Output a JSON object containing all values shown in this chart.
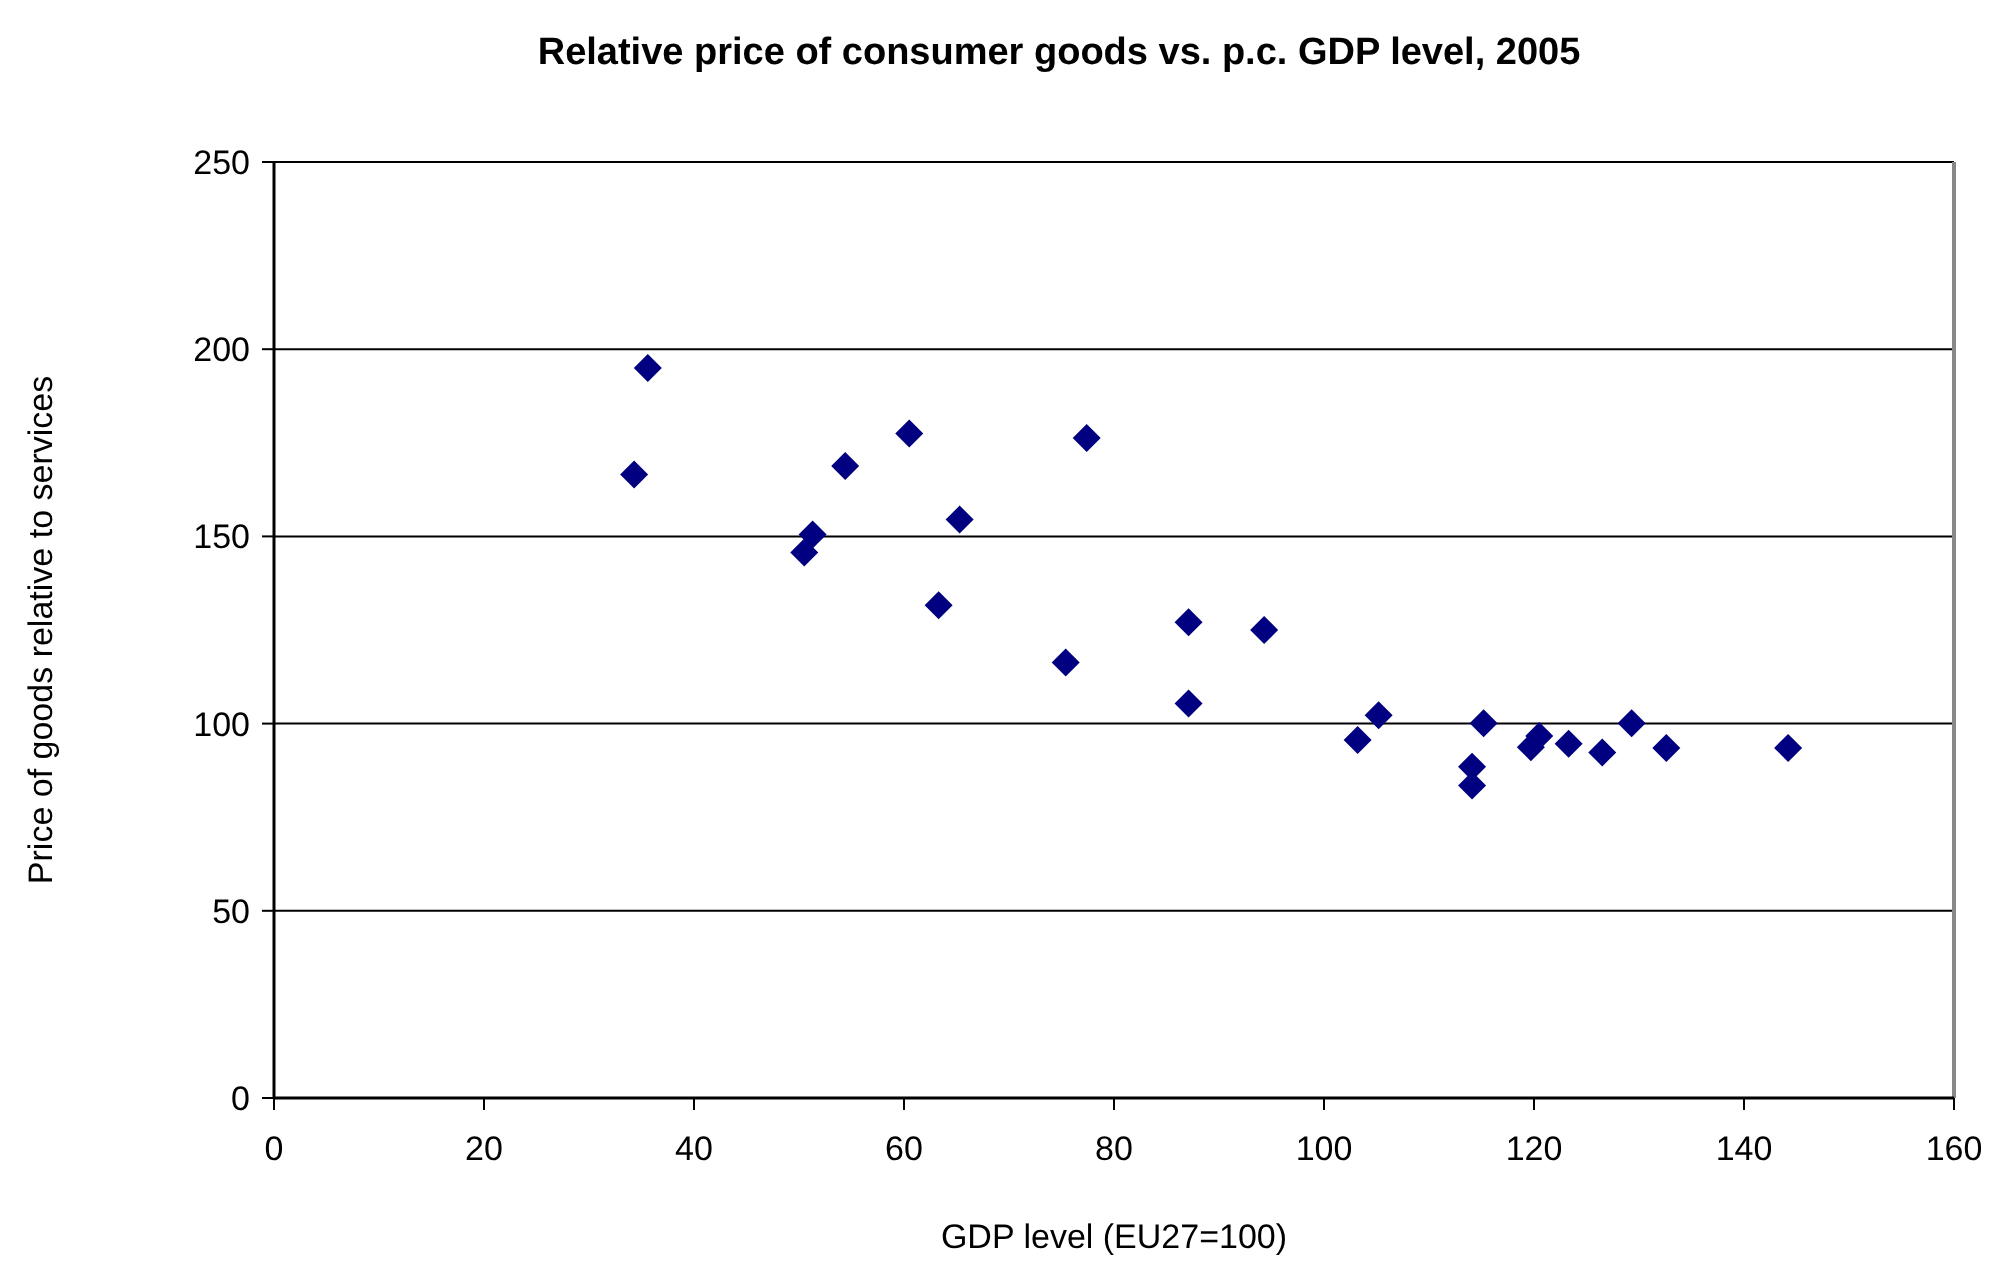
{
  "chart_data": {
    "type": "scatter",
    "title": "Relative price of consumer goods vs. p.c. GDP level, 2005",
    "xlabel": "GDP level (EU27=100)",
    "ylabel": "Price of goods relative to services",
    "x": [
      35.6,
      34.3,
      54.4,
      60.5,
      77.4,
      51.3,
      50.5,
      65.3,
      63.3,
      75.4,
      87.1,
      94.3,
      87.1,
      103.2,
      105.2,
      115.2,
      114.1,
      114.1,
      119.7,
      120.5,
      123.3,
      126.5,
      129.3,
      132.6,
      144.2
    ],
    "values": [
      195,
      166.5,
      168.8,
      177.5,
      176.3,
      150.5,
      145.7,
      154.5,
      131.6,
      116.3,
      127.1,
      125,
      105.4,
      95.6,
      102.2,
      100.1,
      88.5,
      83.5,
      93.7,
      96.7,
      94.6,
      92.3,
      100.1,
      93.5,
      93.5
    ],
    "color": "#000080",
    "marker": "diamond",
    "xlim": [
      0,
      160
    ],
    "ylim": [
      0,
      250
    ],
    "xticks": [
      0,
      20,
      40,
      60,
      80,
      100,
      120,
      140,
      160
    ],
    "yticks": [
      0,
      50,
      100,
      150,
      200,
      250
    ],
    "grid": "y"
  }
}
